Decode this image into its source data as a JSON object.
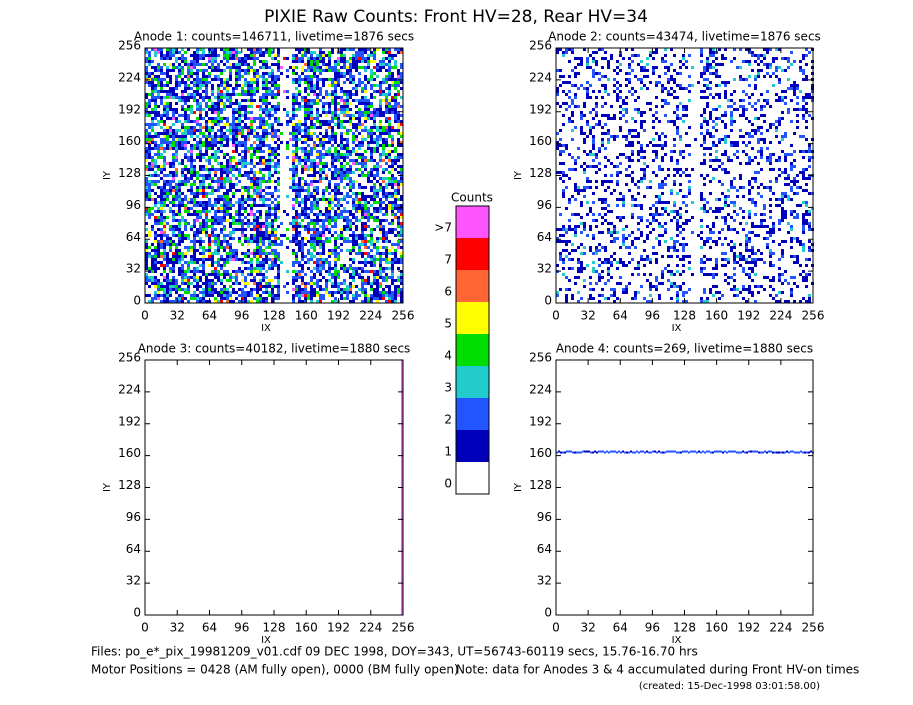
{
  "page_title": "PIXIE Raw Counts:  Front HV=28, Rear HV=34",
  "chart_data": [
    {
      "type": "heatmap",
      "title": "Anode 1: counts=146711, livetime=1876 secs",
      "x_label": "IX",
      "y_label": "IY",
      "xlim": [
        0,
        256
      ],
      "ylim": [
        0,
        256
      ],
      "xticks": [
        0,
        32,
        64,
        96,
        128,
        160,
        192,
        224,
        256
      ],
      "yticks": [
        0,
        32,
        64,
        96,
        128,
        160,
        192,
        224,
        256
      ]
    },
    {
      "type": "heatmap",
      "title": "Anode 2: counts=43474, livetime=1876 secs",
      "x_label": "IX",
      "y_label": "IY",
      "xlim": [
        0,
        256
      ],
      "ylim": [
        0,
        256
      ],
      "xticks": [
        0,
        32,
        64,
        96,
        128,
        160,
        192,
        224,
        256
      ],
      "yticks": [
        0,
        32,
        64,
        96,
        128,
        160,
        192,
        224,
        256
      ]
    },
    {
      "type": "heatmap",
      "title": "Anode 3: counts=40182, livetime=1880 secs",
      "x_label": "IX",
      "y_label": "IY",
      "xlim": [
        0,
        256
      ],
      "ylim": [
        0,
        256
      ],
      "xticks": [
        0,
        32,
        64,
        96,
        128,
        160,
        192,
        224,
        256
      ],
      "yticks": [
        0,
        32,
        64,
        96,
        128,
        160,
        192,
        224,
        256
      ]
    },
    {
      "type": "heatmap",
      "title": "Anode 4: counts=269, livetime=1880 secs",
      "x_label": "IX",
      "y_label": "IY",
      "xlim": [
        0,
        256
      ],
      "ylim": [
        0,
        256
      ],
      "xticks": [
        0,
        32,
        64,
        96,
        128,
        160,
        192,
        224,
        256
      ],
      "yticks": [
        0,
        32,
        64,
        96,
        128,
        160,
        192,
        224,
        256
      ]
    }
  ],
  "colorbar": {
    "title": "Counts",
    "levels": [
      {
        "label": ">7",
        "color": "#ff55ff"
      },
      {
        "label": "7",
        "color": "#ff0000"
      },
      {
        "label": "6",
        "color": "#ff6633"
      },
      {
        "label": "5",
        "color": "#ffff00"
      },
      {
        "label": "4",
        "color": "#00dd00"
      },
      {
        "label": "3",
        "color": "#22cccc"
      },
      {
        "label": "2",
        "color": "#2255ff"
      },
      {
        "label": "1",
        "color": "#0000bb"
      },
      {
        "label": "0",
        "color": "#ffffff"
      }
    ]
  },
  "footer": {
    "files": "Files: po_e*_pix_19981209_v01.cdf    09 DEC 1998, DOY=343, UT=56743-60119 secs, 15.76-16.70 hrs",
    "motor": "Motor Positions = 0428 (AM fully open), 0000 (BM fully open)",
    "note": "Note: data for Anodes 3 & 4 accumulated during Front HV-on times",
    "created": "(created: 15-Dec-1998 03:01:58.00)"
  }
}
